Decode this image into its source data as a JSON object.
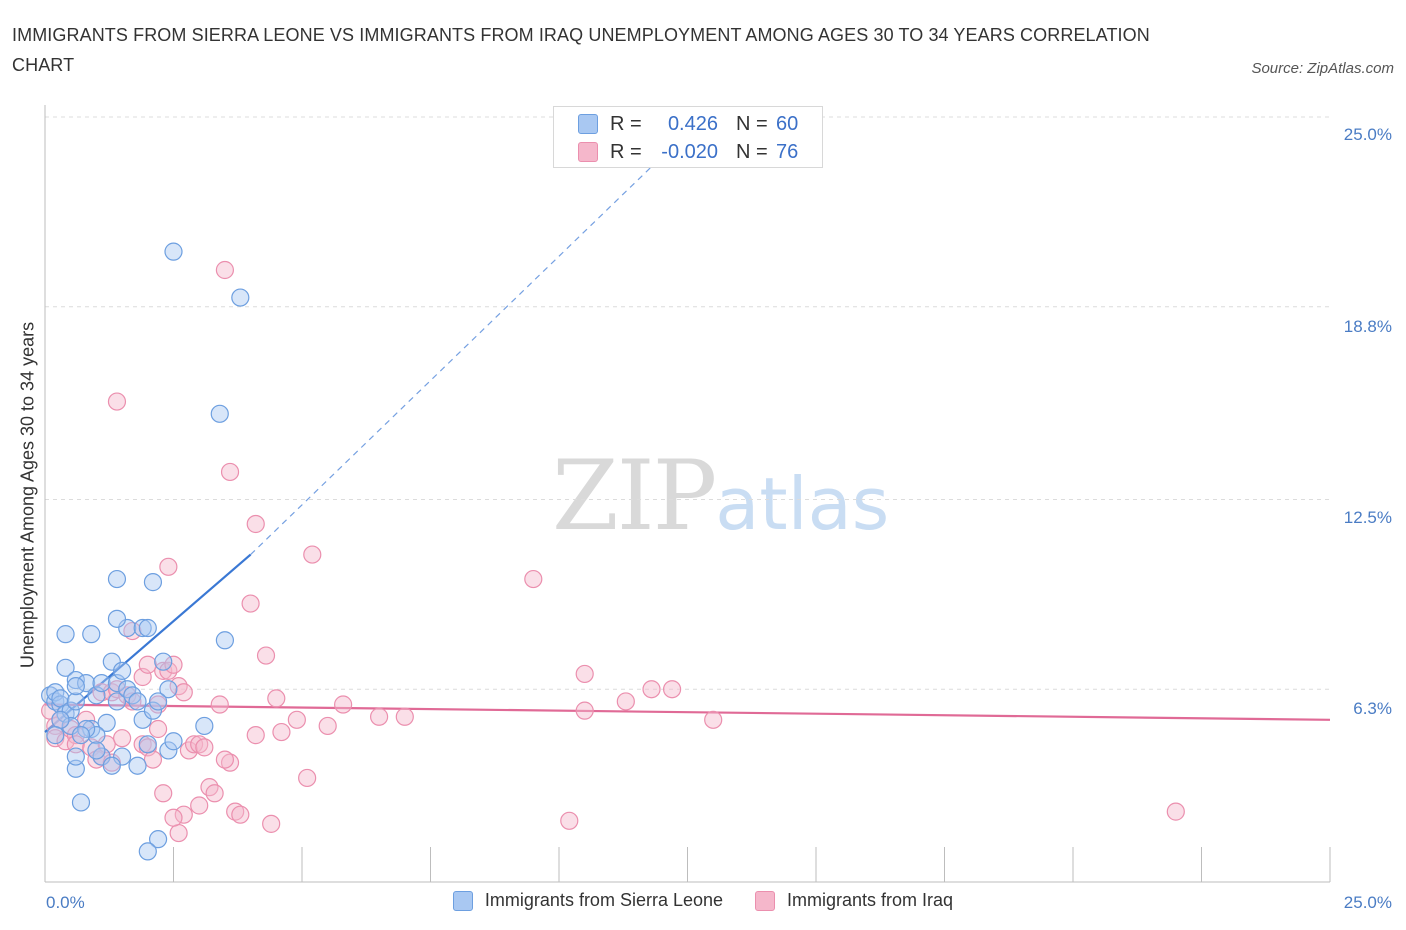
{
  "title": "IMMIGRANTS FROM SIERRA LEONE VS IMMIGRANTS FROM IRAQ UNEMPLOYMENT AMONG AGES 30 TO 34 YEARS CORRELATION CHART",
  "source": "Source: ZipAtlas.com",
  "watermark": {
    "zip": "ZIP",
    "atlas": "atlas"
  },
  "legend": {
    "rows": [
      {
        "r_label": "R =",
        "r_value": "0.426",
        "n_label": "N =",
        "n_value": "60",
        "color": "#a9c8f2"
      },
      {
        "r_label": "R =",
        "r_value": "-0.020",
        "n_label": "N =",
        "n_value": "76",
        "color": "#f5b7cb"
      }
    ]
  },
  "bottom_legend": {
    "series1": "Immigrants from Sierra Leone",
    "series2": "Immigrants from Iraq"
  },
  "colors": {
    "blue_fill": "#a9c8f2",
    "blue_stroke": "#6d9fe0",
    "blue_line": "#3a78d4",
    "pink_fill": "#f5b7cb",
    "pink_stroke": "#eb8fae",
    "pink_line": "#e06a96",
    "grid": "#dcdcdc",
    "tick_text": "#4a7cc4"
  },
  "chart_data": {
    "type": "scatter",
    "title": "IMMIGRANTS FROM SIERRA LEONE VS IMMIGRANTS FROM IRAQ UNEMPLOYMENT AMONG AGES 30 TO 34 YEARS CORRELATION CHART",
    "xlabel": "",
    "ylabel": "Unemployment Among Ages 30 to 34 years",
    "xlim": [
      0,
      25
    ],
    "ylim": [
      0,
      25
    ],
    "x_tick_labels": [
      "0.0%",
      "25.0%"
    ],
    "y_ticks": [
      6.3,
      12.5,
      18.8,
      25.0
    ],
    "y_tick_labels": [
      "6.3%",
      "12.5%",
      "18.8%",
      "25.0%"
    ],
    "grid": true,
    "legend_position": "top-center",
    "series": [
      {
        "name": "Immigrants from Sierra Leone",
        "R": 0.426,
        "N": 60,
        "trend": {
          "x0": 0.0,
          "y0": 4.9,
          "x1": 4.0,
          "y1": 10.7,
          "dash_to": [
            12.0,
            23.7
          ]
        },
        "points": [
          [
            0.1,
            6.1
          ],
          [
            0.2,
            5.9
          ],
          [
            0.2,
            6.2
          ],
          [
            0.3,
            5.8
          ],
          [
            0.3,
            6.0
          ],
          [
            0.4,
            5.5
          ],
          [
            0.5,
            5.6
          ],
          [
            0.5,
            5.1
          ],
          [
            0.3,
            5.3
          ],
          [
            0.6,
            5.9
          ],
          [
            0.4,
            7.0
          ],
          [
            0.6,
            6.6
          ],
          [
            0.8,
            6.5
          ],
          [
            0.9,
            8.1
          ],
          [
            0.4,
            8.1
          ],
          [
            1.0,
            6.1
          ],
          [
            0.9,
            5.0
          ],
          [
            1.1,
            6.5
          ],
          [
            1.2,
            5.2
          ],
          [
            1.0,
            4.8
          ],
          [
            1.3,
            7.2
          ],
          [
            1.4,
            6.5
          ],
          [
            1.5,
            6.9
          ],
          [
            1.4,
            5.9
          ],
          [
            1.6,
            6.3
          ],
          [
            1.7,
            6.1
          ],
          [
            1.8,
            5.9
          ],
          [
            1.9,
            5.3
          ],
          [
            1.6,
            8.3
          ],
          [
            1.4,
            8.6
          ],
          [
            1.9,
            8.3
          ],
          [
            2.0,
            8.3
          ],
          [
            1.5,
            4.1
          ],
          [
            1.8,
            3.8
          ],
          [
            1.1,
            4.1
          ],
          [
            0.8,
            5.0
          ],
          [
            1.3,
            3.8
          ],
          [
            0.7,
            4.8
          ],
          [
            0.6,
            6.4
          ],
          [
            0.2,
            4.8
          ],
          [
            2.0,
            4.5
          ],
          [
            2.4,
            6.3
          ],
          [
            2.4,
            4.3
          ],
          [
            2.3,
            7.2
          ],
          [
            2.5,
            4.6
          ],
          [
            2.1,
            5.6
          ],
          [
            2.2,
            5.9
          ],
          [
            1.4,
            9.9
          ],
          [
            2.1,
            9.8
          ],
          [
            3.5,
            7.9
          ],
          [
            3.1,
            5.1
          ],
          [
            2.5,
            20.6
          ],
          [
            3.8,
            19.1
          ],
          [
            3.4,
            15.3
          ],
          [
            0.7,
            2.6
          ],
          [
            2.2,
            1.4
          ],
          [
            2.0,
            1.0
          ],
          [
            0.6,
            3.7
          ],
          [
            0.6,
            4.1
          ],
          [
            1.0,
            4.3
          ]
        ]
      },
      {
        "name": "Immigrants from Iraq",
        "R": -0.02,
        "N": 76,
        "trend": {
          "x0": 0.0,
          "y0": 5.8,
          "x1": 25.0,
          "y1": 5.3
        },
        "points": [
          [
            0.1,
            5.6
          ],
          [
            0.2,
            5.1
          ],
          [
            0.2,
            4.7
          ],
          [
            0.3,
            5.3
          ],
          [
            0.4,
            4.6
          ],
          [
            0.5,
            5.0
          ],
          [
            0.6,
            4.8
          ],
          [
            0.6,
            4.5
          ],
          [
            0.8,
            5.3
          ],
          [
            0.9,
            4.4
          ],
          [
            1.0,
            4.0
          ],
          [
            1.1,
            4.1
          ],
          [
            1.2,
            4.5
          ],
          [
            1.3,
            3.9
          ],
          [
            1.5,
            4.7
          ],
          [
            1.1,
            6.2
          ],
          [
            1.3,
            6.2
          ],
          [
            1.4,
            6.3
          ],
          [
            1.6,
            6.1
          ],
          [
            1.7,
            5.9
          ],
          [
            1.9,
            4.5
          ],
          [
            2.0,
            4.4
          ],
          [
            2.1,
            4.0
          ],
          [
            2.2,
            5.0
          ],
          [
            2.3,
            6.9
          ],
          [
            2.4,
            6.9
          ],
          [
            2.5,
            7.1
          ],
          [
            2.2,
            5.8
          ],
          [
            2.6,
            6.4
          ],
          [
            2.7,
            6.2
          ],
          [
            2.8,
            4.3
          ],
          [
            2.9,
            4.5
          ],
          [
            3.0,
            4.5
          ],
          [
            3.1,
            4.4
          ],
          [
            3.2,
            3.1
          ],
          [
            3.3,
            2.9
          ],
          [
            3.0,
            2.5
          ],
          [
            2.7,
            2.2
          ],
          [
            2.6,
            1.6
          ],
          [
            2.5,
            2.1
          ],
          [
            1.7,
            8.2
          ],
          [
            1.9,
            6.7
          ],
          [
            2.0,
            7.1
          ],
          [
            2.4,
            10.3
          ],
          [
            3.6,
            3.9
          ],
          [
            3.7,
            2.3
          ],
          [
            3.8,
            2.2
          ],
          [
            3.4,
            5.8
          ],
          [
            4.1,
            4.8
          ],
          [
            4.3,
            7.4
          ],
          [
            4.1,
            11.7
          ],
          [
            4.0,
            9.1
          ],
          [
            4.4,
            1.9
          ],
          [
            4.5,
            6.0
          ],
          [
            4.6,
            4.9
          ],
          [
            4.9,
            5.3
          ],
          [
            5.1,
            3.4
          ],
          [
            5.2,
            10.7
          ],
          [
            5.5,
            5.1
          ],
          [
            5.8,
            5.8
          ],
          [
            6.5,
            5.4
          ],
          [
            7.0,
            5.4
          ],
          [
            9.5,
            9.9
          ],
          [
            10.2,
            2.0
          ],
          [
            10.5,
            6.8
          ],
          [
            10.5,
            5.6
          ],
          [
            11.3,
            5.9
          ],
          [
            11.8,
            6.3
          ],
          [
            12.2,
            6.3
          ],
          [
            13.0,
            5.3
          ],
          [
            22.0,
            2.3
          ],
          [
            1.4,
            15.7
          ],
          [
            3.5,
            20.0
          ],
          [
            3.6,
            13.4
          ],
          [
            2.3,
            2.9
          ],
          [
            3.5,
            4.0
          ]
        ]
      }
    ]
  }
}
